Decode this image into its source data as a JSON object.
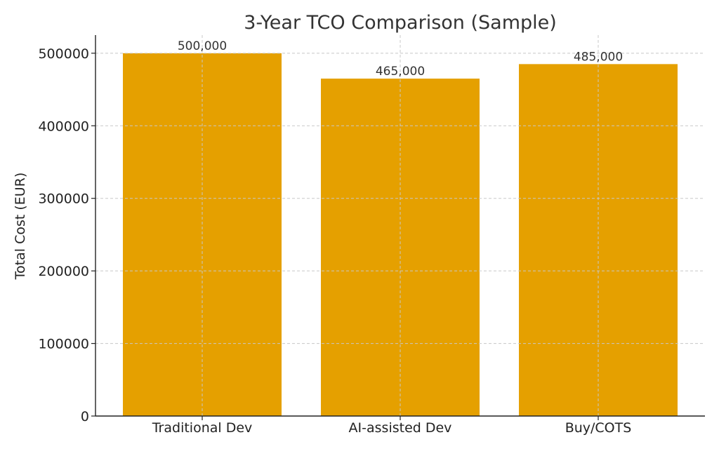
{
  "chart_data": {
    "type": "bar",
    "title": "3-Year TCO Comparison (Sample)",
    "xlabel": "",
    "ylabel": "Total Cost (EUR)",
    "categories": [
      "Traditional Dev",
      "AI-assisted Dev",
      "Buy/COTS"
    ],
    "values": [
      500000,
      465000,
      485000
    ],
    "value_labels": [
      "500,000",
      "465,000",
      "485,000"
    ],
    "ylim": [
      0,
      525000
    ],
    "yticks": [
      0,
      100000,
      200000,
      300000,
      400000,
      500000
    ],
    "ytick_labels": [
      "0",
      "100000",
      "200000",
      "300000",
      "400000",
      "500000"
    ],
    "grid": true,
    "colors": {
      "bar": "#E5A000",
      "axis": "#222222",
      "grid": "#c8c8c8"
    }
  }
}
